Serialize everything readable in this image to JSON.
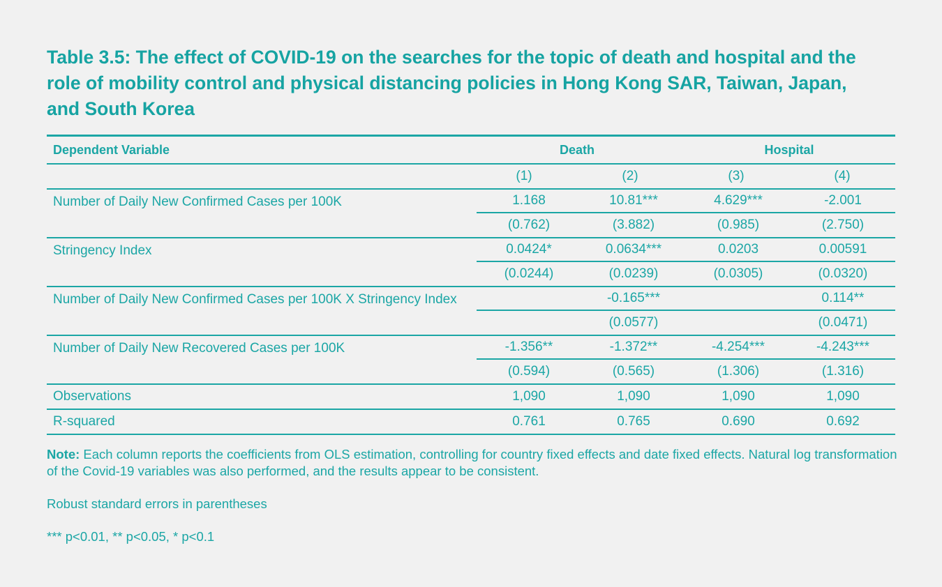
{
  "title": "Table 3.5: The effect of COVID-19 on the searches for the topic of death and hospital and the role of mobility control and physical distancing policies in Hong Kong SAR, Taiwan, Japan, and South Korea",
  "table": {
    "header_label": "Dependent Variable",
    "groups": [
      "Death",
      "Hospital"
    ],
    "columns": [
      "(1)",
      "(2)",
      "(3)",
      "(4)"
    ],
    "rows": [
      {
        "label": "Number of Daily New Confirmed Cases per 100K",
        "coef": [
          "1.168",
          "10.81***",
          "4.629***",
          "-2.001"
        ],
        "se": [
          "(0.762)",
          "(3.882)",
          "(0.985)",
          "(2.750)"
        ]
      },
      {
        "label": "Stringency Index",
        "coef": [
          "0.0424*",
          "0.0634***",
          "0.0203",
          "0.00591"
        ],
        "se": [
          "(0.0244)",
          "(0.0239)",
          "(0.0305)",
          "(0.0320)"
        ]
      },
      {
        "label": "Number of Daily New Confirmed Cases per 100K X Stringency Index",
        "coef": [
          "",
          "-0.165***",
          "",
          "0.114**"
        ],
        "se": [
          "",
          "(0.0577)",
          "",
          "(0.0471)"
        ]
      },
      {
        "label": "Number of Daily New Recovered Cases per 100K",
        "coef": [
          "-1.356**",
          "-1.372**",
          "-4.254***",
          "-4.243***"
        ],
        "se": [
          "(0.594)",
          "(0.565)",
          "(1.306)",
          "(1.316)"
        ]
      }
    ],
    "stats": [
      {
        "label": "Observations",
        "values": [
          "1,090",
          "1,090",
          "1,090",
          "1,090"
        ]
      },
      {
        "label": "R-squared",
        "values": [
          "0.761",
          "0.765",
          "0.690",
          "0.692"
        ]
      }
    ]
  },
  "notes": {
    "note_label": "Note:",
    "note_text": " Each column reports the coefficients from OLS estimation, controlling for country fixed effects and date fixed effects. Natural log transformation of the Covid-19 variables was also performed, and the results appear to be consistent.",
    "se_note": "Robust standard errors in parentheses",
    "sig_note": "*** p<0.01, ** p<0.05, * p<0.1"
  },
  "colors": {
    "accent": "#1ba6a5",
    "background": "#f1f1f1"
  }
}
